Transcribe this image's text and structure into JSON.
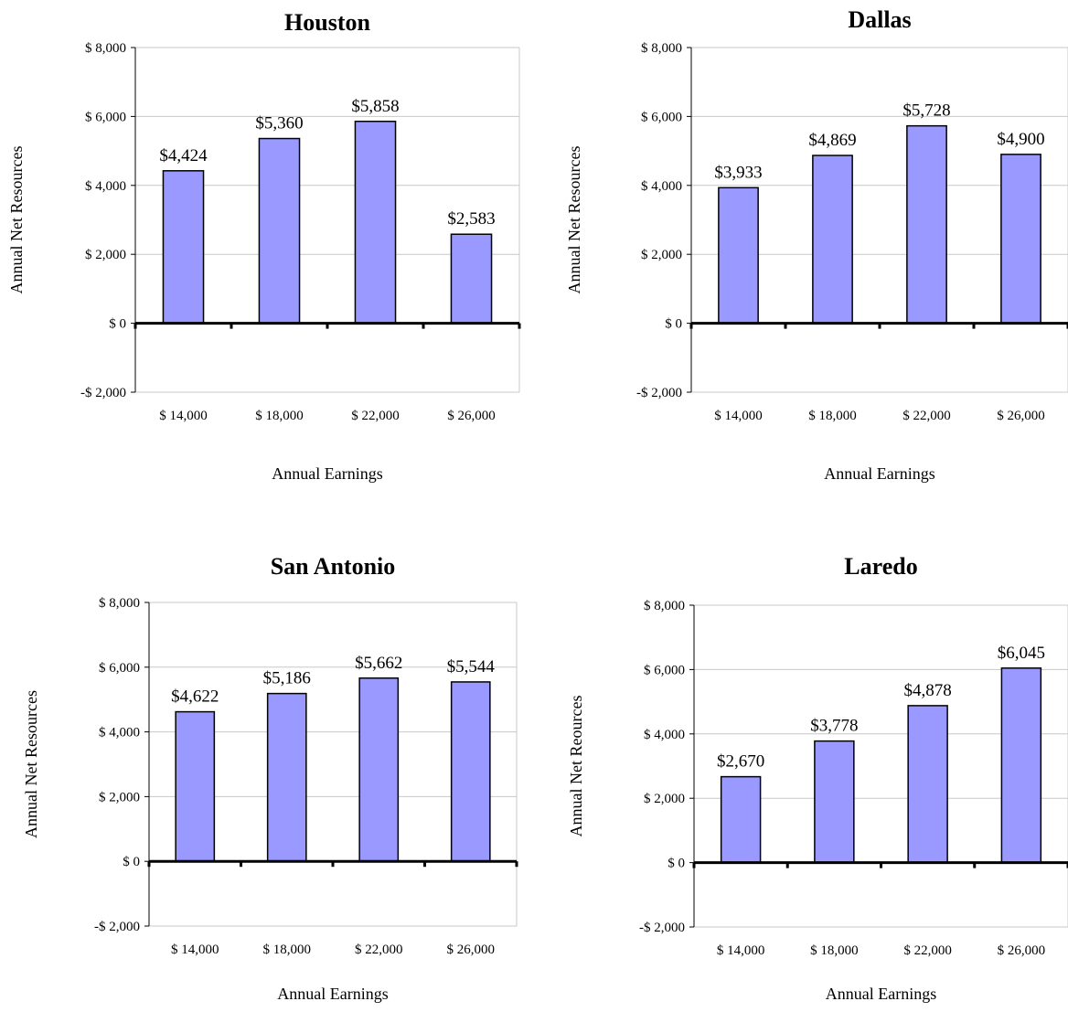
{
  "chart_data": [
    {
      "type": "bar",
      "title": "Houston",
      "xlabel": "Annual Earnings",
      "ylabel": "Annual Net Resources",
      "categories": [
        "$ 14,000",
        "$ 18,000",
        "$ 22,000",
        "$ 26,000"
      ],
      "values": [
        4424,
        5360,
        5858,
        2583
      ],
      "data_labels": [
        "$4,424",
        "$5,360",
        "$5,858",
        "$2,583"
      ],
      "ylim": [
        -2000,
        8000
      ],
      "y_ticks": [
        8000,
        6000,
        4000,
        2000,
        0,
        -2000
      ],
      "y_tick_labels": [
        "$ 8,000",
        "$ 6,000",
        "$ 4,000",
        "$ 2,000",
        "$ 0",
        "-$ 2,000"
      ],
      "grid": true,
      "bar_color": "#9999ff"
    },
    {
      "type": "bar",
      "title": "Dallas",
      "xlabel": "Annual Earnings",
      "ylabel": "Annual Net Resources",
      "categories": [
        "$ 14,000",
        "$ 18,000",
        "$ 22,000",
        "$ 26,000"
      ],
      "values": [
        3933,
        4869,
        5728,
        4900
      ],
      "data_labels": [
        "$3,933",
        "$4,869",
        "$5,728",
        "$4,900"
      ],
      "ylim": [
        -2000,
        8000
      ],
      "y_ticks": [
        8000,
        6000,
        4000,
        2000,
        0,
        -2000
      ],
      "y_tick_labels": [
        "$ 8,000",
        "$ 6,000",
        "$ 4,000",
        "$ 2,000",
        "$ 0",
        "-$ 2,000"
      ],
      "grid": true,
      "bar_color": "#9999ff"
    },
    {
      "type": "bar",
      "title": "San Antonio",
      "xlabel": "Annual Earnings",
      "ylabel": "Annual Net Resources",
      "categories": [
        "$ 14,000",
        "$ 18,000",
        "$ 22,000",
        "$ 26,000"
      ],
      "values": [
        4622,
        5186,
        5662,
        5544
      ],
      "data_labels": [
        "$4,622",
        "$5,186",
        "$5,662",
        "$5,544"
      ],
      "ylim": [
        -2000,
        8000
      ],
      "y_ticks": [
        8000,
        6000,
        4000,
        2000,
        0,
        -2000
      ],
      "y_tick_labels": [
        "$ 8,000",
        "$ 6,000",
        "$ 4,000",
        "$ 2,000",
        "$ 0",
        "-$ 2,000"
      ],
      "grid": true,
      "bar_color": "#9999ff"
    },
    {
      "type": "bar",
      "title": "Laredo",
      "xlabel": "Annual Earnings",
      "ylabel": "Annual Net Reources",
      "categories": [
        "$ 14,000",
        "$ 18,000",
        "$ 22,000",
        "$ 26,000"
      ],
      "values": [
        2670,
        3778,
        4878,
        6045
      ],
      "data_labels": [
        "$2,670",
        "$3,778",
        "$4,878",
        "$6,045"
      ],
      "ylim": [
        -2000,
        8000
      ],
      "y_ticks": [
        8000,
        6000,
        4000,
        2000,
        0,
        -2000
      ],
      "y_tick_labels": [
        "$ 8,000",
        "$ 6,000",
        "$ 4,000",
        "$ 2,000",
        "$ 0",
        "-$ 2,000"
      ],
      "grid": true,
      "bar_color": "#9999ff"
    }
  ]
}
